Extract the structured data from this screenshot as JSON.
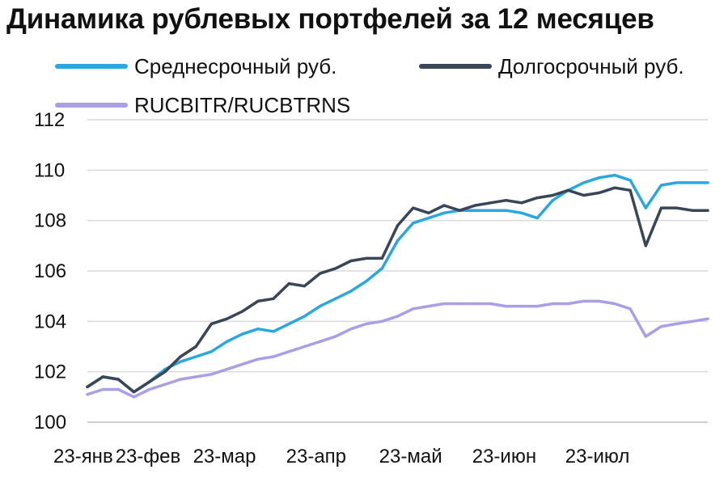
{
  "chart_data": {
    "type": "line",
    "title": "Динамика рублевых портфелей за 12 месяцев",
    "xlabel": "",
    "ylabel": "",
    "ylim": [
      100,
      112
    ],
    "yticks": [
      "100",
      "102",
      "104",
      "106",
      "108",
      "110",
      "112"
    ],
    "xticks": [
      "23-янв",
      "23-фев",
      "23-мар",
      "23-апр",
      "23-май",
      "23-июн",
      "23-июл"
    ],
    "x": [
      "23-янв",
      "2-фев",
      "12-фев",
      "18-фев",
      "23-фев",
      "3-мар",
      "8-мар",
      "13-мар",
      "18-мар",
      "23-мар",
      "28-мар",
      "2-апр",
      "7-апр",
      "12-апр",
      "17-апр",
      "23-апр",
      "28-апр",
      "3-май",
      "8-май",
      "13-май",
      "18-май",
      "23-май",
      "28-май",
      "2-июн",
      "7-июн",
      "12-июн",
      "17-июн",
      "23-июн",
      "28-июн",
      "3-июл",
      "8-июл",
      "13-июл",
      "18-июл",
      "23-июл",
      "28-июл",
      "2-авг",
      "7-авг",
      "10-авг",
      "13-авг",
      "18-авг",
      "20-авг"
    ],
    "series": [
      {
        "name": "Среднесрочный руб.",
        "color": "#29a8e0",
        "values": [
          101.4,
          101.8,
          101.7,
          101.2,
          101.6,
          102.1,
          102.4,
          102.6,
          102.8,
          103.2,
          103.5,
          103.7,
          103.6,
          103.9,
          104.2,
          104.6,
          104.9,
          105.2,
          105.6,
          106.1,
          107.2,
          107.9,
          108.1,
          108.3,
          108.4,
          108.4,
          108.4,
          108.4,
          108.3,
          108.1,
          108.8,
          109.2,
          109.5,
          109.7,
          109.8,
          109.6,
          108.5,
          109.4,
          109.5,
          109.5,
          109.5
        ]
      },
      {
        "name": "Долгосрочный руб.",
        "color": "#394559",
        "values": [
          101.4,
          101.8,
          101.7,
          101.2,
          101.6,
          102.0,
          102.6,
          103.0,
          103.9,
          104.1,
          104.4,
          104.8,
          104.9,
          105.5,
          105.4,
          105.9,
          106.1,
          106.4,
          106.5,
          106.5,
          107.8,
          108.5,
          108.3,
          108.6,
          108.4,
          108.6,
          108.7,
          108.8,
          108.7,
          108.9,
          109.0,
          109.2,
          109.0,
          109.1,
          109.3,
          109.2,
          107.0,
          108.5,
          108.5,
          108.4,
          108.4
        ]
      },
      {
        "name": "RUCBITR/RUCBTRNS",
        "color": "#a99fe6",
        "values": [
          101.1,
          101.3,
          101.3,
          101.0,
          101.3,
          101.5,
          101.7,
          101.8,
          101.9,
          102.1,
          102.3,
          102.5,
          102.6,
          102.8,
          103.0,
          103.2,
          103.4,
          103.7,
          103.9,
          104.0,
          104.2,
          104.5,
          104.6,
          104.7,
          104.7,
          104.7,
          104.7,
          104.6,
          104.6,
          104.6,
          104.7,
          104.7,
          104.8,
          104.8,
          104.7,
          104.5,
          103.4,
          103.8,
          103.9,
          104.0,
          104.1
        ]
      }
    ],
    "grid": true,
    "legend_position": "top-left"
  }
}
